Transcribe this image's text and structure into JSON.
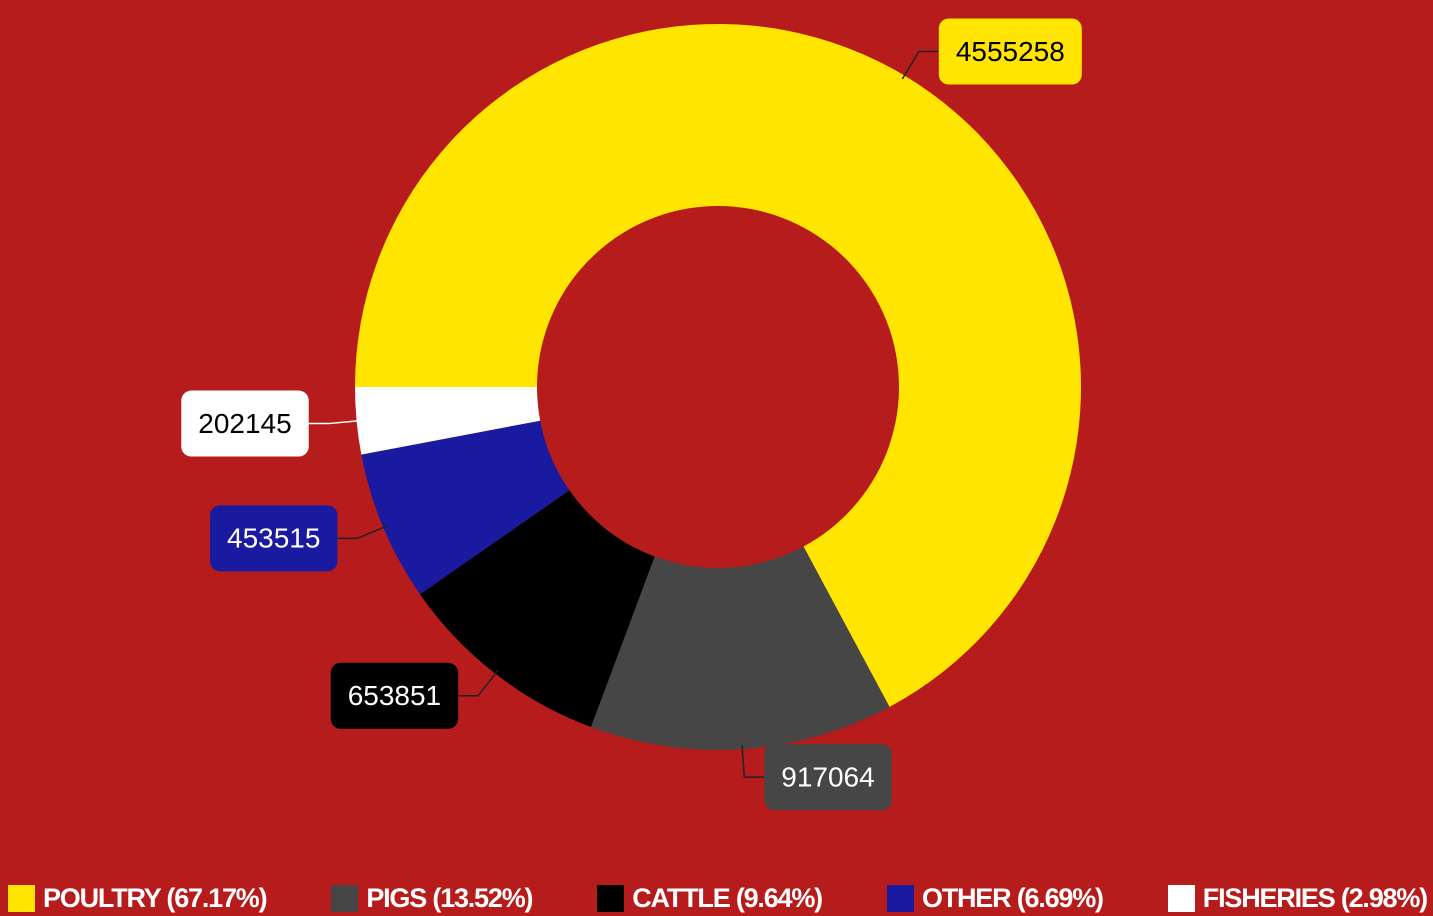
{
  "chart_data": {
    "type": "donut",
    "categories": [
      "POULTRY (67.17%)",
      "PIGS (13.52%)",
      "CATTLE (9.64%)",
      "OTHER (6.69%)",
      "FISHERIES (2.98%)"
    ],
    "values": [
      4555258,
      917064,
      653851,
      453515,
      202145
    ],
    "colors": [
      "#ffe500",
      "#464646",
      "#000000",
      "#1a1aa0",
      "#ffffff"
    ]
  }
}
